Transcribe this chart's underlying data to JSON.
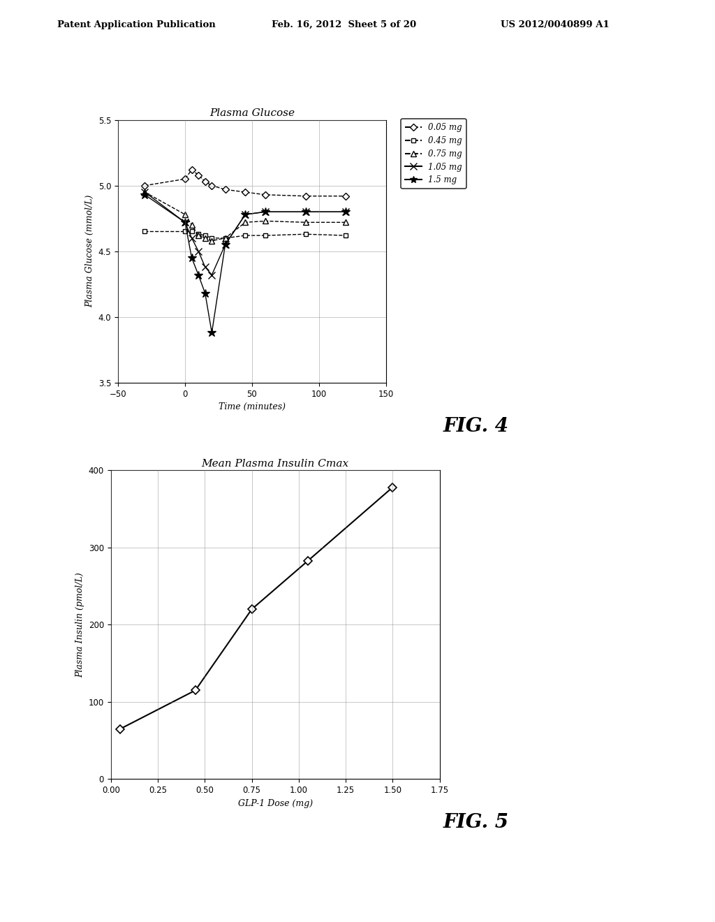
{
  "header_left": "Patent Application Publication",
  "header_center": "Feb. 16, 2012  Sheet 5 of 20",
  "header_right": "US 2012/0040899 A1",
  "fig4": {
    "title": "Plasma Glucose",
    "xlabel": "Time (minutes)",
    "ylabel": "Plasma Glucose (mmol/L)",
    "xlim": [
      -50,
      150
    ],
    "ylim": [
      3.5,
      5.5
    ],
    "xticks": [
      -50,
      0,
      50,
      100,
      150
    ],
    "yticks": [
      3.5,
      4.0,
      4.5,
      5.0,
      5.5
    ],
    "series": {
      "0.05 mg": {
        "x": [
          -30,
          0,
          5,
          10,
          15,
          20,
          30,
          45,
          60,
          90,
          120
        ],
        "y": [
          5.0,
          5.05,
          5.12,
          5.08,
          5.03,
          5.0,
          4.97,
          4.95,
          4.93,
          4.92,
          4.92
        ],
        "marker": "D",
        "linestyle": "--"
      },
      "0.45 mg": {
        "x": [
          -30,
          0,
          5,
          10,
          15,
          20,
          30,
          45,
          60,
          90,
          120
        ],
        "y": [
          4.65,
          4.65,
          4.65,
          4.63,
          4.62,
          4.6,
          4.6,
          4.62,
          4.62,
          4.63,
          4.62
        ],
        "marker": "s",
        "linestyle": "--"
      },
      "0.75 mg": {
        "x": [
          -30,
          0,
          5,
          10,
          15,
          20,
          30,
          45,
          60,
          90,
          120
        ],
        "y": [
          4.95,
          4.78,
          4.7,
          4.62,
          4.6,
          4.58,
          4.6,
          4.72,
          4.73,
          4.72,
          4.72
        ],
        "marker": "^",
        "linestyle": "--"
      },
      "1.05 mg": {
        "x": [
          -30,
          0,
          5,
          10,
          15,
          20,
          30,
          45,
          60,
          90,
          120
        ],
        "y": [
          4.95,
          4.72,
          4.6,
          4.5,
          4.38,
          4.32,
          4.55,
          4.78,
          4.8,
          4.8,
          4.8
        ],
        "marker": "x",
        "linestyle": "-"
      },
      "1.5 mg": {
        "x": [
          -30,
          0,
          5,
          10,
          15,
          20,
          30,
          45,
          60,
          90,
          120
        ],
        "y": [
          4.93,
          4.72,
          4.45,
          4.32,
          4.18,
          3.88,
          4.55,
          4.78,
          4.8,
          4.8,
          4.8
        ],
        "marker": "*",
        "linestyle": "-"
      }
    },
    "fig_label": "FIG. 4"
  },
  "fig5": {
    "title": "Mean Plasma Insulin Cmax",
    "xlabel": "GLP-1 Dose (mg)",
    "ylabel": "Plasma Insulin (pmol/L)",
    "xlim": [
      0,
      1.75
    ],
    "ylim": [
      0,
      400
    ],
    "xticks": [
      0,
      0.25,
      0.5,
      0.75,
      1.0,
      1.25,
      1.5,
      1.75
    ],
    "yticks": [
      0,
      100,
      200,
      300,
      400
    ],
    "x": [
      0.05,
      0.45,
      0.75,
      1.05,
      1.5
    ],
    "y": [
      65,
      115,
      220,
      283,
      378
    ],
    "marker": "D",
    "linestyle": "-",
    "color": "#000000",
    "fig_label": "FIG. 5"
  }
}
